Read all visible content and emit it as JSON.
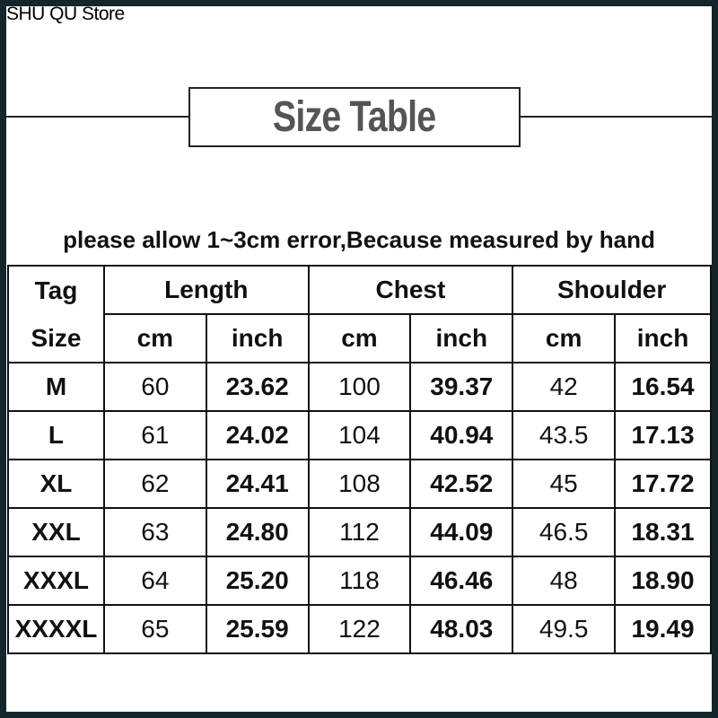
{
  "store_name": "SHU QU Store",
  "title": "Size Table",
  "note": "please allow 1~3cm error,Because measured by hand",
  "table": {
    "tag_header": [
      "Tag",
      "Size"
    ],
    "groups": [
      "Length",
      "Chest",
      "Shoulder"
    ],
    "units": [
      "cm",
      "inch",
      "cm",
      "inch",
      "cm",
      "inch"
    ],
    "rows": [
      [
        "M",
        "60",
        "23.62",
        "100",
        "39.37",
        "42",
        "16.54"
      ],
      [
        "L",
        "61",
        "24.02",
        "104",
        "40.94",
        "43.5",
        "17.13"
      ],
      [
        "XL",
        "62",
        "24.41",
        "108",
        "42.52",
        "45",
        "17.72"
      ],
      [
        "XXL",
        "63",
        "24.80",
        "112",
        "44.09",
        "46.5",
        "18.31"
      ],
      [
        "XXXL",
        "64",
        "25.20",
        "118",
        "46.46",
        "48",
        "18.90"
      ],
      [
        "XXXXL",
        "65",
        "25.59",
        "122",
        "48.03",
        "49.5",
        "19.49"
      ]
    ]
  },
  "colors": {
    "frame": "#13262b",
    "title": "#555555"
  }
}
